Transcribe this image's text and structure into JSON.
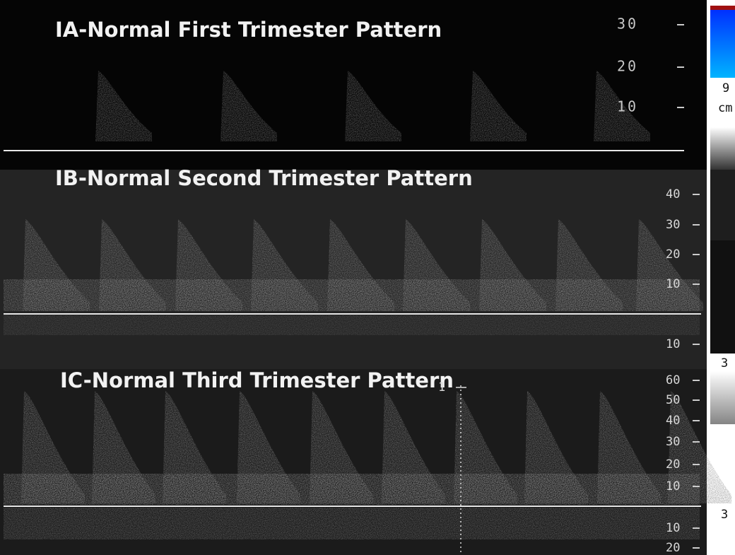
{
  "panels": [
    {
      "title": "IA-Normal First Trimester Pattern",
      "scale_labels": [
        30,
        20,
        10
      ],
      "side_label": "9",
      "unit": "cm"
    },
    {
      "title": "IB-Normal Second Trimester Pattern",
      "scale_labels": [
        40,
        30,
        20,
        10
      ],
      "lower_scale_labels": [
        10
      ],
      "side_label": "3"
    },
    {
      "title": "IC-Normal Third Trimester Pattern",
      "marker": "1",
      "scale_labels": [
        60,
        50,
        40,
        30,
        20,
        10
      ],
      "lower_scale_labels": [
        10,
        20
      ],
      "side_label": "3"
    }
  ]
}
